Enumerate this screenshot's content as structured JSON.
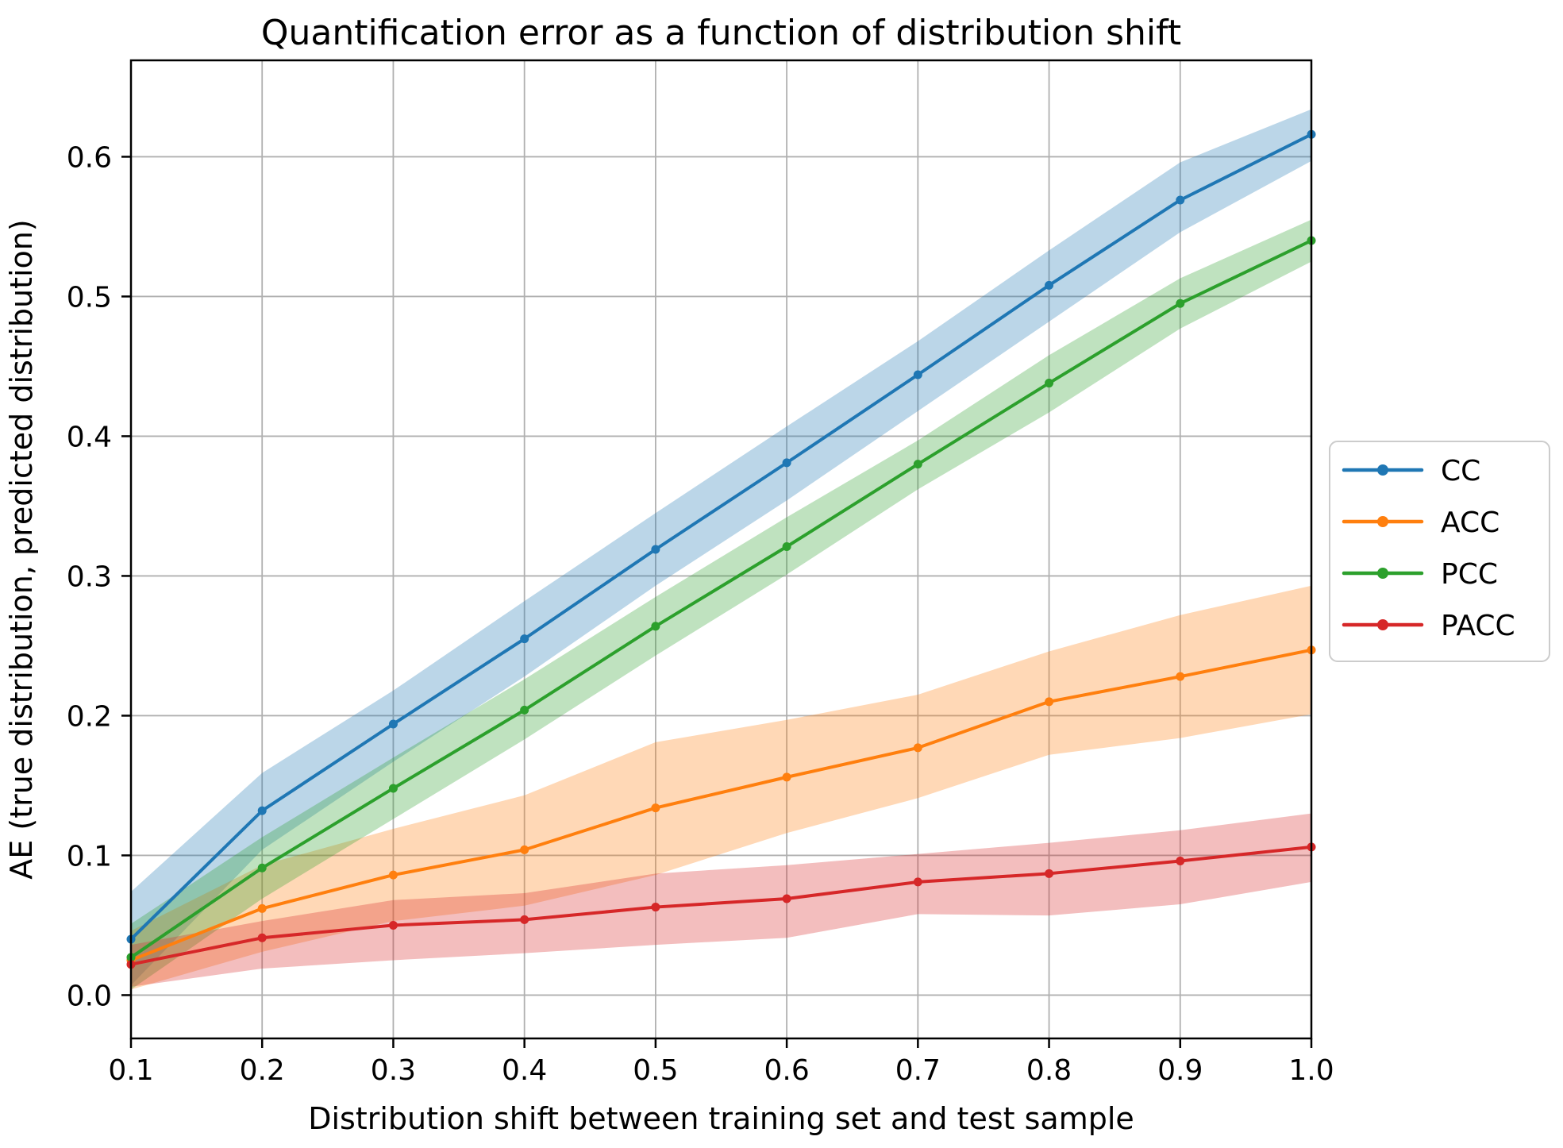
{
  "chart_data": {
    "type": "line",
    "title": "Quantification error as a function of distribution shift",
    "xlabel": "Distribution shift between training set and test sample",
    "ylabel": "AE (true distribution, predicted distribution)",
    "x": [
      0.1,
      0.2,
      0.3,
      0.4,
      0.5,
      0.6,
      0.7,
      0.8,
      0.9,
      1.0
    ],
    "x_ticks": [
      "0.1",
      "0.2",
      "0.3",
      "0.4",
      "0.5",
      "0.6",
      "0.7",
      "0.8",
      "0.9",
      "1.0"
    ],
    "y_tick_values": [
      0.0,
      0.1,
      0.2,
      0.3,
      0.4,
      0.5,
      0.6
    ],
    "y_ticks": [
      "0.0",
      "0.1",
      "0.2",
      "0.3",
      "0.4",
      "0.5",
      "0.6"
    ],
    "xlim": [
      0.1,
      1.0
    ],
    "ylim": [
      -0.031,
      0.669
    ],
    "grid": true,
    "grid_color": "#b0b0b0",
    "legend_position": "outside-right",
    "band_alpha": 0.3,
    "series": [
      {
        "name": "CC",
        "color": "#1f77b4",
        "values": [
          0.04,
          0.132,
          0.194,
          0.255,
          0.319,
          0.381,
          0.444,
          0.508,
          0.569,
          0.616
        ],
        "band_lower": [
          0.007,
          0.104,
          0.167,
          0.228,
          0.293,
          0.354,
          0.418,
          0.482,
          0.546,
          0.597
        ],
        "band_upper": [
          0.074,
          0.159,
          0.218,
          0.282,
          0.345,
          0.407,
          0.468,
          0.533,
          0.596,
          0.634
        ]
      },
      {
        "name": "ACC",
        "color": "#ff7f0e",
        "values": [
          0.025,
          0.062,
          0.086,
          0.104,
          0.134,
          0.156,
          0.177,
          0.21,
          0.228,
          0.247
        ],
        "band_lower": [
          0.004,
          0.031,
          0.053,
          0.064,
          0.086,
          0.116,
          0.141,
          0.172,
          0.184,
          0.201
        ],
        "band_upper": [
          0.046,
          0.093,
          0.119,
          0.143,
          0.181,
          0.197,
          0.215,
          0.246,
          0.272,
          0.293
        ]
      },
      {
        "name": "PCC",
        "color": "#2ca02c",
        "values": [
          0.027,
          0.091,
          0.148,
          0.204,
          0.264,
          0.321,
          0.38,
          0.438,
          0.495,
          0.54
        ],
        "band_lower": [
          0.004,
          0.069,
          0.126,
          0.183,
          0.243,
          0.301,
          0.362,
          0.417,
          0.477,
          0.525
        ],
        "band_upper": [
          0.051,
          0.113,
          0.17,
          0.226,
          0.285,
          0.342,
          0.397,
          0.458,
          0.513,
          0.555
        ]
      },
      {
        "name": "PACC",
        "color": "#d62728",
        "values": [
          0.022,
          0.041,
          0.05,
          0.054,
          0.063,
          0.069,
          0.081,
          0.087,
          0.096,
          0.106
        ],
        "band_lower": [
          0.006,
          0.019,
          0.025,
          0.03,
          0.036,
          0.041,
          0.058,
          0.057,
          0.065,
          0.081
        ],
        "band_upper": [
          0.036,
          0.053,
          0.068,
          0.073,
          0.087,
          0.093,
          0.101,
          0.109,
          0.118,
          0.13
        ]
      }
    ],
    "legend_labels": [
      "CC",
      "ACC",
      "PCC",
      "PACC"
    ]
  }
}
